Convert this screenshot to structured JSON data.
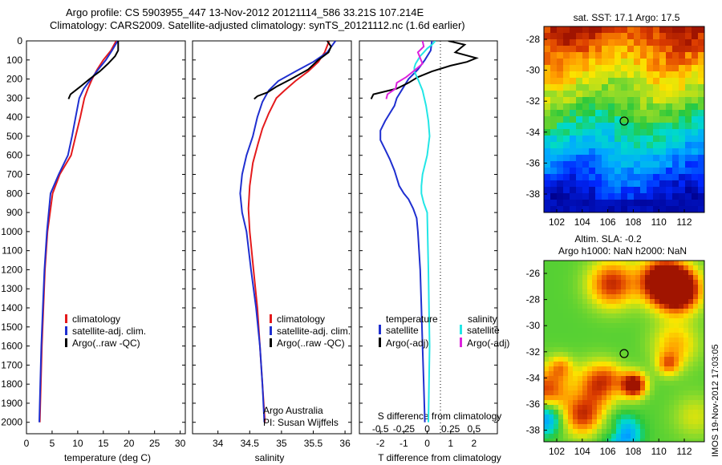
{
  "header": {
    "title_line1": "Argo profile: CS 5903955_447 13-Nov-2012 20121114_586 33.21S 107.214E",
    "title_line2": "Climatology: CARS2009. Satellite-adjusted climatology: synTS_20121112.nc (1.6d earlier)"
  },
  "colors": {
    "climatology": "#e41a1c",
    "satellite": "#1f2fd0",
    "argo": "#000000",
    "salinity_sat": "#22e6e6",
    "salinity_argo": "#dd22dd"
  },
  "depth_ticks": [
    "0",
    "100",
    "200",
    "300",
    "400",
    "500",
    "600",
    "700",
    "800",
    "900",
    "1000",
    "1100",
    "1200",
    "1300",
    "1400",
    "1500",
    "1600",
    "1700",
    "1800",
    "1900",
    "2000"
  ],
  "legend_profile": {
    "items": [
      "climatology",
      "satellite-adj. clim.",
      "Argo(..raw -QC)"
    ]
  },
  "legend_diff": {
    "col1_title": "temperature",
    "col2_title": "salinity",
    "col1_items": [
      "satellite",
      "Argo(-adj)"
    ],
    "col2_items": [
      "satellite",
      "Argo(-adj)"
    ]
  },
  "annotations": {
    "agency": "Argo Australia",
    "pi": "PI: Susan Wijffels"
  },
  "chart_data": [
    {
      "type": "line",
      "xlabel": "temperature (deg C)",
      "xlim": [
        0,
        31
      ],
      "ylim": [
        0,
        2060
      ],
      "xticks": [
        "0",
        "5",
        "10",
        "15",
        "20",
        "25",
        "30"
      ],
      "series": [
        {
          "name": "climatology",
          "x": [
            17.5,
            16.5,
            15.0,
            13.8,
            12.8,
            12.0,
            11.3,
            10.5,
            9.6,
            8.7,
            6.5,
            5.1,
            4.1,
            3.6,
            3.3,
            3.0,
            2.8,
            2.6
          ],
          "y": [
            0,
            50,
            100,
            150,
            200,
            250,
            300,
            400,
            500,
            600,
            700,
            800,
            1000,
            1200,
            1400,
            1600,
            1800,
            2000
          ]
        },
        {
          "name": "satellite-adj. clim.",
          "x": [
            17.8,
            16.7,
            15.5,
            14.0,
            12.6,
            11.2,
            10.3,
            9.6,
            8.9,
            8.1,
            6.3,
            4.7,
            4.0,
            3.5,
            3.2,
            2.9,
            2.7,
            2.5
          ],
          "y": [
            0,
            50,
            100,
            150,
            200,
            250,
            300,
            400,
            500,
            600,
            700,
            800,
            1000,
            1200,
            1400,
            1600,
            1800,
            2000
          ]
        },
        {
          "name": "Argo(..raw -QC)",
          "x": [
            17.9,
            17.9,
            17.3,
            15.9,
            14.3,
            12.3,
            10.5,
            8.6,
            8.2
          ],
          "y": [
            0,
            50,
            80,
            120,
            160,
            200,
            240,
            280,
            305
          ]
        }
      ]
    },
    {
      "type": "line",
      "xlabel": "salinity",
      "xlim": [
        33.6,
        36.1
      ],
      "ylim": [
        0,
        2060
      ],
      "xticks": [
        "34",
        "34.5",
        "35",
        "35.5",
        "36"
      ],
      "series": [
        {
          "name": "climatology",
          "x": [
            35.75,
            35.68,
            35.58,
            35.42,
            35.22,
            35.05,
            34.92,
            34.8,
            34.7,
            34.63,
            34.55,
            34.5,
            34.48,
            34.5,
            34.56,
            34.62,
            34.66,
            34.7,
            34.72,
            34.73,
            34.74
          ],
          "y": [
            0,
            60,
            110,
            160,
            210,
            260,
            300,
            380,
            460,
            540,
            640,
            760,
            880,
            1000,
            1200,
            1400,
            1600,
            1800,
            1900,
            1950,
            2000
          ]
        },
        {
          "name": "satellite-adj. clim.",
          "x": [
            35.85,
            35.72,
            35.5,
            35.22,
            34.95,
            34.8,
            34.7,
            34.62,
            34.55,
            34.45,
            34.38,
            34.35,
            34.38,
            34.45,
            34.52,
            34.6,
            34.66,
            34.7,
            34.73
          ],
          "y": [
            0,
            60,
            110,
            160,
            210,
            260,
            320,
            400,
            500,
            600,
            700,
            800,
            900,
            1000,
            1200,
            1400,
            1600,
            1800,
            2000
          ]
        },
        {
          "name": "Argo(..raw -QC)",
          "x": [
            35.72,
            35.78,
            35.74,
            35.58,
            35.42,
            35.15,
            34.92,
            34.78,
            34.62,
            34.57
          ],
          "y": [
            0,
            30,
            60,
            100,
            150,
            200,
            240,
            270,
            290,
            305
          ]
        }
      ]
    },
    {
      "type": "line",
      "xlabel": "T difference from climatology",
      "xlabel_secondary": "S difference from climatology",
      "xlim": [
        -2.9,
        3.0
      ],
      "ylim": [
        0,
        2060
      ],
      "xticks": [
        "-2",
        "-1",
        "0",
        "1",
        "2"
      ],
      "xticks_secondary": [
        "-0.5",
        "-0.25",
        "0",
        "0.25",
        "0.5"
      ],
      "series": [
        {
          "name": "temperature satellite",
          "x": [
            0.2,
            0.15,
            -0.1,
            -0.4,
            -0.8,
            -1.1,
            -1.3,
            -1.4,
            -1.6,
            -1.8,
            -2.0,
            -2.0,
            -1.8,
            -1.6,
            -1.4,
            -1.2,
            -1.0,
            -0.8,
            -0.6,
            -0.45,
            -0.4,
            -0.3,
            -0.25,
            -0.2,
            -0.15,
            -0.1
          ],
          "y": [
            0,
            50,
            100,
            150,
            200,
            260,
            300,
            340,
            380,
            420,
            470,
            520,
            570,
            620,
            680,
            760,
            800,
            830,
            880,
            930,
            1000,
            1200,
            1400,
            1600,
            1800,
            2000
          ]
        },
        {
          "name": "temperature Argo(-adj)",
          "x": [
            0.9,
            1.6,
            1.4,
            1.2,
            2.1,
            1.7,
            1.0,
            0.2,
            -0.4,
            -0.8,
            -1.3,
            -2.3,
            -2.4
          ],
          "y": [
            0,
            20,
            40,
            60,
            90,
            110,
            130,
            160,
            190,
            220,
            250,
            280,
            305
          ]
        },
        {
          "name": "salinity satellite",
          "x": [
            0.35,
            0.2,
            0.0,
            -0.15,
            -0.3,
            -0.4,
            -0.5,
            -0.55,
            -0.55,
            -0.4,
            -0.2,
            -0.05,
            0.05,
            0.1,
            0.0,
            -0.1,
            -0.2,
            -0.25,
            -0.25,
            -0.15,
            0.0,
            0.05,
            0.1,
            0.05
          ],
          "y": [
            0,
            20,
            40,
            60,
            80,
            100,
            120,
            140,
            160,
            200,
            260,
            340,
            420,
            500,
            600,
            650,
            700,
            760,
            800,
            850,
            900,
            1200,
            1600,
            2000
          ]
        },
        {
          "name": "salinity Argo(-adj)",
          "x": [
            -0.2,
            -0.15,
            -0.4,
            -0.3,
            -0.2,
            -0.6,
            -0.9,
            -1.3,
            -1.35,
            -1.7,
            -1.75
          ],
          "y": [
            0,
            30,
            60,
            90,
            120,
            160,
            190,
            220,
            250,
            280,
            305
          ]
        }
      ]
    },
    {
      "type": "heatmap",
      "title": "sat. SST: 17.1  Argo: 17.5",
      "xticks": [
        "102",
        "104",
        "106",
        "108",
        "110",
        "112"
      ],
      "yticks": [
        "-28",
        "-30",
        "-32",
        "-34",
        "-36",
        "-38"
      ],
      "marker": {
        "lon": 107.2,
        "lat": -33.2
      }
    },
    {
      "type": "heatmap",
      "title_line1": "Altim. SLA: -0.2",
      "title_line2": "Argo h1000: NaN h2000: NaN",
      "xticks": [
        "102",
        "104",
        "106",
        "108",
        "110",
        "112"
      ],
      "yticks": [
        "-26",
        "-28",
        "-30",
        "-32",
        "-34",
        "-36",
        "-38"
      ],
      "marker": {
        "lon": 107.2,
        "lat": -33.2
      }
    }
  ],
  "footer": {
    "stamp": "IMOS 19-Nov-2012 17:03:05"
  }
}
